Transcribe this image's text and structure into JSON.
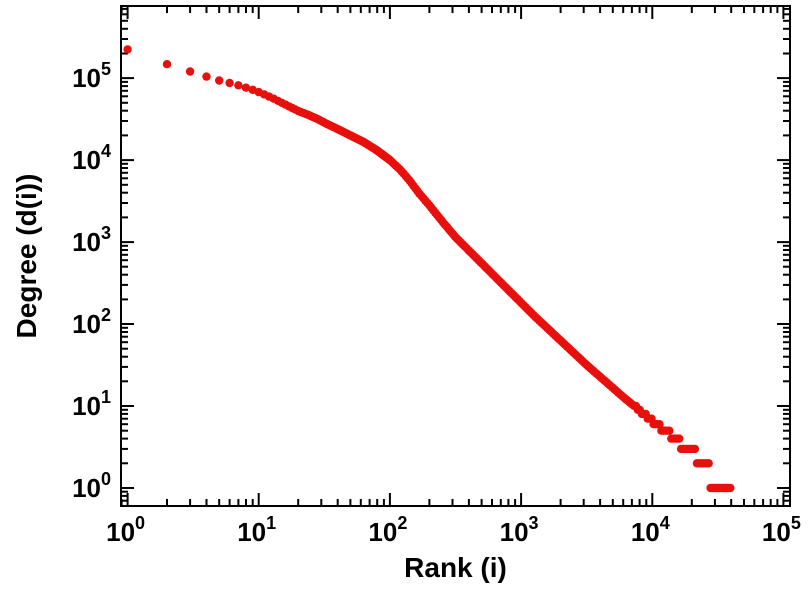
{
  "chart_data": {
    "type": "scatter",
    "title": "",
    "xlabel": "Rank (i)",
    "ylabel": "Degree (d(i))",
    "x_scale": "log",
    "y_scale": "log",
    "x_tick_exponents": [
      0,
      1,
      2,
      3,
      4,
      5
    ],
    "y_tick_exponents": [
      0,
      1,
      2,
      3,
      4,
      5
    ],
    "x_range_log10": [
      -0.05,
      5.05
    ],
    "y_range_log10": [
      -0.22,
      5.88
    ],
    "grid": false,
    "legend": "none",
    "marker_color": "#e8100c",
    "marker_radius": 4.2,
    "axis_color": "#000000",
    "series_name": "degree-vs-rank",
    "control_points_loglog": [
      [
        0.0,
        5.35
      ],
      [
        0.3,
        5.17
      ],
      [
        0.48,
        5.08
      ],
      [
        0.6,
        5.02
      ],
      [
        0.7,
        4.97
      ],
      [
        0.78,
        4.94
      ],
      [
        0.85,
        4.91
      ],
      [
        0.95,
        4.86
      ],
      [
        1.0,
        4.83
      ],
      [
        1.1,
        4.76
      ],
      [
        1.2,
        4.68
      ],
      [
        1.3,
        4.6
      ],
      [
        1.38,
        4.55
      ],
      [
        1.45,
        4.5
      ],
      [
        1.52,
        4.44
      ],
      [
        1.6,
        4.38
      ],
      [
        1.7,
        4.3
      ],
      [
        1.8,
        4.22
      ],
      [
        1.9,
        4.12
      ],
      [
        2.0,
        4.0
      ],
      [
        2.08,
        3.88
      ],
      [
        2.15,
        3.75
      ],
      [
        2.22,
        3.6
      ],
      [
        2.3,
        3.45
      ],
      [
        2.4,
        3.25
      ],
      [
        2.5,
        3.06
      ],
      [
        2.6,
        2.9
      ],
      [
        2.7,
        2.74
      ],
      [
        2.8,
        2.58
      ],
      [
        2.9,
        2.42
      ],
      [
        3.0,
        2.26
      ],
      [
        3.1,
        2.1
      ],
      [
        3.2,
        1.95
      ],
      [
        3.3,
        1.8
      ],
      [
        3.4,
        1.65
      ],
      [
        3.5,
        1.5
      ],
      [
        3.6,
        1.36
      ],
      [
        3.7,
        1.22
      ],
      [
        3.8,
        1.08
      ],
      [
        3.9,
        0.95
      ],
      [
        4.0,
        0.82
      ],
      [
        4.1,
        0.7
      ],
      [
        4.18,
        0.6
      ],
      [
        4.26,
        0.48
      ],
      [
        4.33,
        0.4
      ],
      [
        4.4,
        0.3
      ],
      [
        4.46,
        0.1
      ],
      [
        4.5,
        0.0
      ],
      [
        4.6,
        0.0
      ]
    ],
    "key_points": {
      "degree_at_rank_1": 220000,
      "degree_at_rank_10": 65000,
      "degree_at_rank_100": 10000,
      "degree_at_rank_1000": 180,
      "degree_at_rank_10000": 7,
      "max_rank_at_degree_1": 40000,
      "min_degree": 1
    }
  }
}
